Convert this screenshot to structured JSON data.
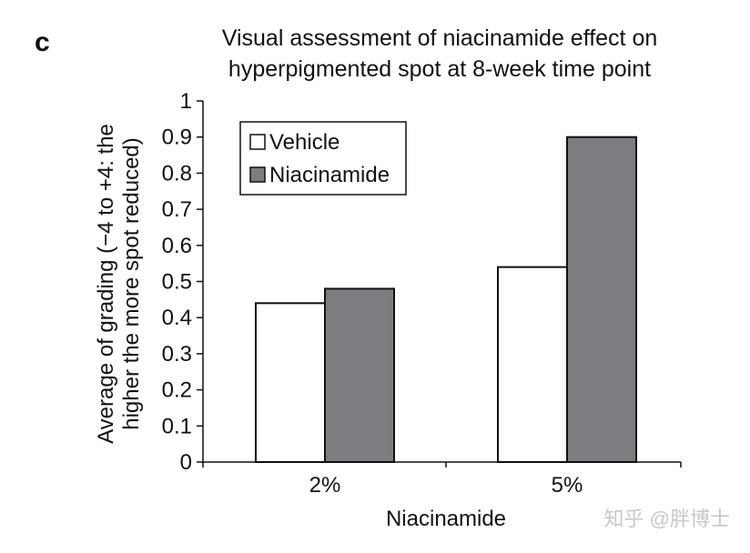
{
  "panel_label": "c",
  "watermark": "知乎 @胖博士",
  "colors": {
    "vehicle": "#ffffff",
    "niacinamide": "#7b7d80",
    "axis": "#111111"
  },
  "chart_data": {
    "type": "bar",
    "title": "Visual assessment of niacinamide effect on hyperpigmented spot at 8-week time point",
    "title_lines": [
      "Visual assessment of niacinamide effect on",
      "hyperpigmented spot at 8-week time point"
    ],
    "xlabel": "Niacinamide",
    "ylabel": "Average of grading (−4 to +4: the higher the more spot reduced)",
    "ylabel_lines": [
      "Average of grading (−4 to +4: the",
      "higher the more spot reduced)"
    ],
    "categories": [
      "2%",
      "5%"
    ],
    "series": [
      {
        "name": "Vehicle",
        "values": [
          0.44,
          0.54
        ]
      },
      {
        "name": "Niacinamide",
        "values": [
          0.48,
          0.9
        ]
      }
    ],
    "ylim": [
      0,
      1
    ],
    "yticks": [
      "0",
      "0.1",
      "0.2",
      "0.3",
      "0.4",
      "0.5",
      "0.6",
      "0.7",
      "0.8",
      "0.9",
      "1"
    ],
    "grid": false,
    "legend_position": "top-left"
  }
}
